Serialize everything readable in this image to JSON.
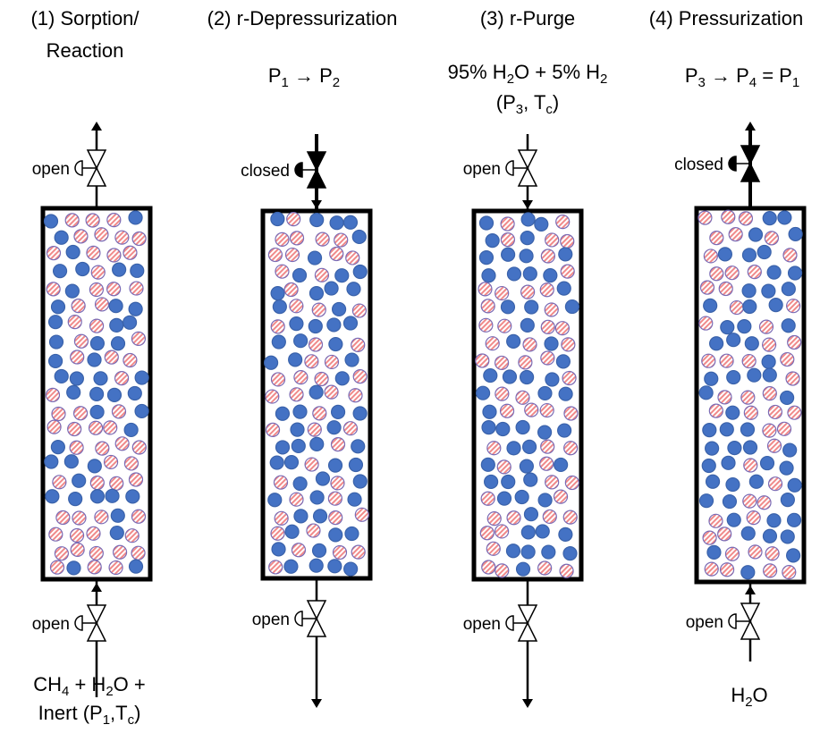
{
  "stages": [
    {
      "title": [
        "(1)   Sorption/",
        "Reaction"
      ],
      "top_note": [],
      "top_valve": "open",
      "bottom_valve": "open",
      "bottom_note": [
        [
          "CH",
          "4",
          " + H",
          "2",
          "O +"
        ],
        [
          "Inert (P",
          "1",
          ",T",
          "c",
          ")"
        ]
      ]
    },
    {
      "title": [
        "(2) r-Depressurization"
      ],
      "top_note": [
        [
          "P",
          "1",
          " → P",
          "2"
        ]
      ],
      "top_valve": "closed",
      "bottom_valve": "open",
      "bottom_note": []
    },
    {
      "title": [
        "(3) r-Purge"
      ],
      "top_note": [
        [
          "95% H",
          "2",
          "O + 5% H",
          "2"
        ],
        [
          "(P",
          "3",
          ", T",
          "c",
          ")"
        ]
      ],
      "top_valve": "open",
      "bottom_valve": "open",
      "bottom_note": []
    },
    {
      "title": [
        "(4) Pressurization"
      ],
      "top_note": [
        [
          "P",
          "3",
          " → P",
          "4",
          " = P",
          "1"
        ]
      ],
      "top_valve": "closed",
      "bottom_valve": "open",
      "bottom_note": [
        [
          "H",
          "2",
          "O"
        ]
      ]
    }
  ]
}
